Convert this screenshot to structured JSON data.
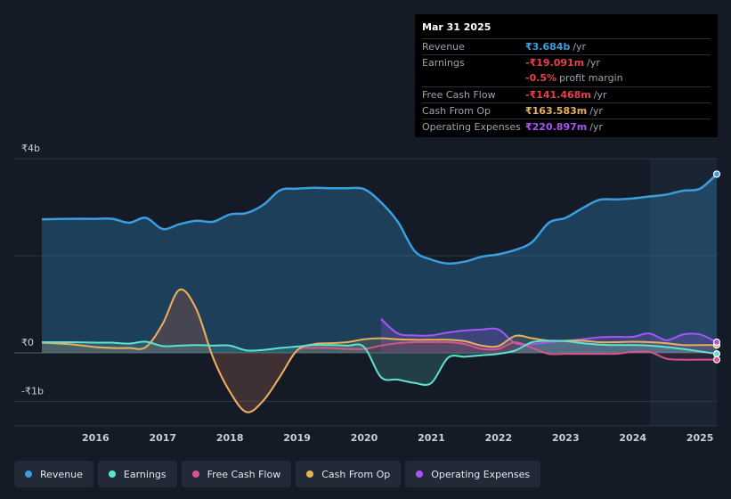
{
  "tooltip": {
    "date": "Mar 31 2025",
    "rows": [
      {
        "label": "Revenue",
        "value": "₹3.684b",
        "unit": "/yr",
        "color": "#3b9ede"
      },
      {
        "label": "Earnings",
        "value": "-₹19.091m",
        "unit": "/yr",
        "color": "#e8404a"
      },
      {
        "label": "",
        "value": "-0.5%",
        "unit": "profit margin",
        "color": "#e8404a"
      },
      {
        "label": "Free Cash Flow",
        "value": "-₹141.468m",
        "unit": "/yr",
        "color": "#e8404a"
      },
      {
        "label": "Cash From Op",
        "value": "₹163.583m",
        "unit": "/yr",
        "color": "#e8b05b"
      },
      {
        "label": "Operating Expenses",
        "value": "₹220.897m",
        "unit": "/yr",
        "color": "#a855f7"
      }
    ]
  },
  "legend": [
    {
      "label": "Revenue",
      "color": "#3b9ede"
    },
    {
      "label": "Earnings",
      "color": "#5ee3cf"
    },
    {
      "label": "Free Cash Flow",
      "color": "#d9528a"
    },
    {
      "label": "Cash From Op",
      "color": "#e8b05b"
    },
    {
      "label": "Operating Expenses",
      "color": "#a855f7"
    }
  ],
  "chart_data": {
    "type": "line",
    "y_tick_labels": [
      "₹4b",
      "₹0",
      "-₹1b"
    ],
    "x_tick_labels": [
      "2016",
      "2017",
      "2018",
      "2019",
      "2020",
      "2021",
      "2022",
      "2023",
      "2024",
      "2025"
    ],
    "ylim": [
      -1.5,
      4.0
    ],
    "xlim": [
      2015.2,
      2025.25
    ],
    "unit": "₹ billions",
    "series": [
      {
        "name": "Revenue",
        "color": "#3b9ede",
        "fill": true,
        "points": [
          [
            2015.2,
            2.75
          ],
          [
            2015.6,
            2.76
          ],
          [
            2016.0,
            2.76
          ],
          [
            2016.25,
            2.76
          ],
          [
            2016.5,
            2.68
          ],
          [
            2016.75,
            2.78
          ],
          [
            2017.0,
            2.55
          ],
          [
            2017.25,
            2.65
          ],
          [
            2017.5,
            2.72
          ],
          [
            2017.75,
            2.7
          ],
          [
            2018.0,
            2.85
          ],
          [
            2018.25,
            2.88
          ],
          [
            2018.5,
            3.05
          ],
          [
            2018.75,
            3.35
          ],
          [
            2019.0,
            3.38
          ],
          [
            2019.25,
            3.4
          ],
          [
            2019.5,
            3.39
          ],
          [
            2019.75,
            3.39
          ],
          [
            2020.0,
            3.37
          ],
          [
            2020.25,
            3.1
          ],
          [
            2020.5,
            2.7
          ],
          [
            2020.75,
            2.1
          ],
          [
            2021.0,
            1.92
          ],
          [
            2021.25,
            1.84
          ],
          [
            2021.5,
            1.88
          ],
          [
            2021.75,
            1.98
          ],
          [
            2022.0,
            2.03
          ],
          [
            2022.25,
            2.12
          ],
          [
            2022.5,
            2.28
          ],
          [
            2022.75,
            2.68
          ],
          [
            2023.0,
            2.78
          ],
          [
            2023.25,
            2.98
          ],
          [
            2023.5,
            3.15
          ],
          [
            2023.75,
            3.16
          ],
          [
            2024.0,
            3.18
          ],
          [
            2024.25,
            3.22
          ],
          [
            2024.5,
            3.26
          ],
          [
            2024.75,
            3.34
          ],
          [
            2025.0,
            3.38
          ],
          [
            2025.25,
            3.68
          ]
        ]
      },
      {
        "name": "Earnings",
        "color": "#5ee3cf",
        "fill": true,
        "points": [
          [
            2015.2,
            0.22
          ],
          [
            2015.6,
            0.22
          ],
          [
            2016.0,
            0.21
          ],
          [
            2016.25,
            0.21
          ],
          [
            2016.5,
            0.19
          ],
          [
            2016.75,
            0.23
          ],
          [
            2017.0,
            0.14
          ],
          [
            2017.25,
            0.15
          ],
          [
            2017.5,
            0.16
          ],
          [
            2017.75,
            0.15
          ],
          [
            2018.0,
            0.15
          ],
          [
            2018.25,
            0.05
          ],
          [
            2018.5,
            0.06
          ],
          [
            2018.75,
            0.1
          ],
          [
            2019.0,
            0.13
          ],
          [
            2019.25,
            0.16
          ],
          [
            2019.5,
            0.16
          ],
          [
            2019.75,
            0.15
          ],
          [
            2020.0,
            0.12
          ],
          [
            2020.25,
            -0.5
          ],
          [
            2020.5,
            -0.55
          ],
          [
            2020.75,
            -0.62
          ],
          [
            2021.0,
            -0.62
          ],
          [
            2021.25,
            -0.1
          ],
          [
            2021.5,
            -0.08
          ],
          [
            2021.75,
            -0.05
          ],
          [
            2022.0,
            -0.02
          ],
          [
            2022.25,
            0.05
          ],
          [
            2022.5,
            0.22
          ],
          [
            2022.75,
            0.25
          ],
          [
            2023.0,
            0.24
          ],
          [
            2023.25,
            0.2
          ],
          [
            2023.5,
            0.17
          ],
          [
            2023.75,
            0.16
          ],
          [
            2024.0,
            0.16
          ],
          [
            2024.25,
            0.15
          ],
          [
            2024.5,
            0.12
          ],
          [
            2024.75,
            0.08
          ],
          [
            2025.0,
            0.03
          ],
          [
            2025.25,
            -0.02
          ]
        ]
      },
      {
        "name": "Free Cash Flow",
        "color": "#d9528a",
        "fill": true,
        "points": [
          [
            2015.2,
            0.21
          ],
          [
            2015.6,
            0.18
          ],
          [
            2016.0,
            0.12
          ],
          [
            2016.25,
            0.1
          ],
          [
            2016.5,
            0.1
          ],
          [
            2016.75,
            0.12
          ],
          [
            2017.0,
            0.6
          ],
          [
            2017.25,
            1.3
          ],
          [
            2017.5,
            0.9
          ],
          [
            2017.75,
            -0.1
          ],
          [
            2018.0,
            -0.8
          ],
          [
            2018.25,
            -1.22
          ],
          [
            2018.5,
            -0.98
          ],
          [
            2018.75,
            -0.48
          ],
          [
            2019.0,
            0.05
          ],
          [
            2019.25,
            0.1
          ],
          [
            2019.5,
            0.1
          ],
          [
            2019.75,
            0.08
          ],
          [
            2020.0,
            0.08
          ],
          [
            2020.25,
            0.15
          ],
          [
            2020.5,
            0.2
          ],
          [
            2020.75,
            0.22
          ],
          [
            2021.0,
            0.22
          ],
          [
            2021.25,
            0.22
          ],
          [
            2021.5,
            0.18
          ],
          [
            2021.75,
            0.08
          ],
          [
            2022.0,
            0.08
          ],
          [
            2022.25,
            0.22
          ],
          [
            2022.5,
            0.1
          ],
          [
            2022.75,
            -0.02
          ],
          [
            2023.0,
            -0.02
          ],
          [
            2023.25,
            -0.02
          ],
          [
            2023.5,
            -0.02
          ],
          [
            2023.75,
            -0.02
          ],
          [
            2024.0,
            0.02
          ],
          [
            2024.25,
            0.02
          ],
          [
            2024.5,
            -0.12
          ],
          [
            2024.75,
            -0.14
          ],
          [
            2025.0,
            -0.14
          ],
          [
            2025.25,
            -0.14
          ]
        ]
      },
      {
        "name": "Cash From Op",
        "color": "#e8b05b",
        "fill": true,
        "points": [
          [
            2015.2,
            0.21
          ],
          [
            2015.6,
            0.18
          ],
          [
            2016.0,
            0.12
          ],
          [
            2016.25,
            0.1
          ],
          [
            2016.5,
            0.1
          ],
          [
            2016.75,
            0.12
          ],
          [
            2017.0,
            0.6
          ],
          [
            2017.25,
            1.3
          ],
          [
            2017.5,
            0.9
          ],
          [
            2017.75,
            -0.1
          ],
          [
            2018.0,
            -0.8
          ],
          [
            2018.25,
            -1.22
          ],
          [
            2018.5,
            -0.98
          ],
          [
            2018.75,
            -0.48
          ],
          [
            2019.0,
            0.05
          ],
          [
            2019.25,
            0.18
          ],
          [
            2019.5,
            0.2
          ],
          [
            2019.75,
            0.22
          ],
          [
            2020.0,
            0.28
          ],
          [
            2020.25,
            0.3
          ],
          [
            2020.5,
            0.28
          ],
          [
            2020.75,
            0.27
          ],
          [
            2021.0,
            0.27
          ],
          [
            2021.25,
            0.27
          ],
          [
            2021.5,
            0.24
          ],
          [
            2021.75,
            0.15
          ],
          [
            2022.0,
            0.14
          ],
          [
            2022.25,
            0.35
          ],
          [
            2022.5,
            0.3
          ],
          [
            2022.75,
            0.25
          ],
          [
            2023.0,
            0.25
          ],
          [
            2023.25,
            0.25
          ],
          [
            2023.5,
            0.22
          ],
          [
            2023.75,
            0.22
          ],
          [
            2024.0,
            0.23
          ],
          [
            2024.25,
            0.22
          ],
          [
            2024.5,
            0.2
          ],
          [
            2024.75,
            0.16
          ],
          [
            2025.0,
            0.16
          ],
          [
            2025.25,
            0.16
          ]
        ]
      },
      {
        "name": "Operating Expenses",
        "color": "#a855f7",
        "fill": true,
        "points": [
          [
            2020.25,
            0.7
          ],
          [
            2020.5,
            0.4
          ],
          [
            2020.75,
            0.36
          ],
          [
            2021.0,
            0.36
          ],
          [
            2021.25,
            0.42
          ],
          [
            2021.5,
            0.46
          ],
          [
            2021.75,
            0.48
          ],
          [
            2022.0,
            0.48
          ],
          [
            2022.25,
            0.2
          ],
          [
            2022.5,
            0.18
          ],
          [
            2022.75,
            0.22
          ],
          [
            2023.0,
            0.25
          ],
          [
            2023.25,
            0.28
          ],
          [
            2023.5,
            0.32
          ],
          [
            2023.75,
            0.33
          ],
          [
            2024.0,
            0.33
          ],
          [
            2024.25,
            0.4
          ],
          [
            2024.5,
            0.26
          ],
          [
            2024.75,
            0.38
          ],
          [
            2025.0,
            0.38
          ],
          [
            2025.25,
            0.22
          ]
        ]
      }
    ],
    "end_dot_colors": [
      "#3b9ede",
      "#d9528a",
      "#a855f7",
      "#5ee3cf"
    ]
  }
}
